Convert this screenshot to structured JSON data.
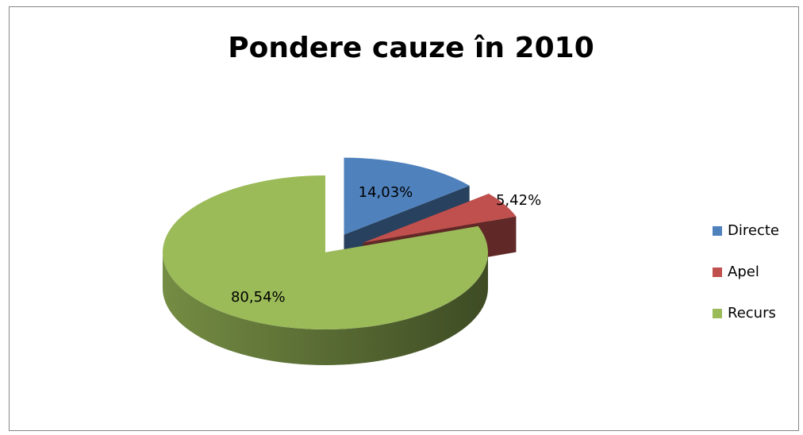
{
  "chart_data": {
    "type": "pie3d",
    "title": "Pondere cauze în 2010",
    "categories": [
      "Directe",
      "Apel",
      "Recurs"
    ],
    "values": [
      14.03,
      5.42,
      80.54
    ],
    "value_labels": [
      "14,03%",
      "5,42%",
      "80,54%"
    ],
    "colors": [
      "#4f81bd",
      "#c0504d",
      "#9bbb59"
    ],
    "explode": [
      true,
      true,
      false
    ],
    "legend": "right"
  }
}
